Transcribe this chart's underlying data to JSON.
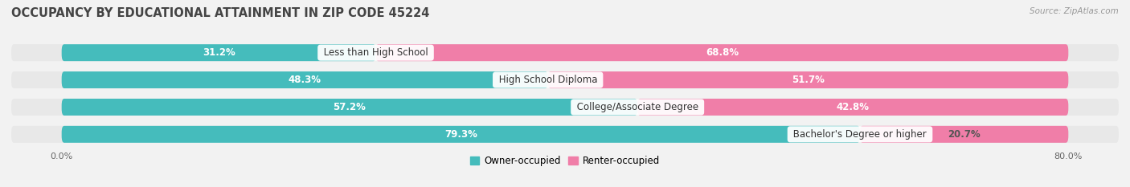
{
  "title": "OCCUPANCY BY EDUCATIONAL ATTAINMENT IN ZIP CODE 45224",
  "source": "Source: ZipAtlas.com",
  "categories": [
    "Less than High School",
    "High School Diploma",
    "College/Associate Degree",
    "Bachelor's Degree or higher"
  ],
  "owner_values": [
    31.2,
    48.3,
    57.2,
    79.3
  ],
  "renter_values": [
    68.8,
    51.7,
    42.8,
    20.7
  ],
  "owner_color": "#45BCBC",
  "renter_color": "#F07EA8",
  "bg_color": "#f2f2f2",
  "bar_bg_color": "#e0e0e0",
  "bar_row_bg": "#e8e8e8",
  "axis_label_left": "0.0%",
  "axis_label_right": "80.0%",
  "title_fontsize": 10.5,
  "bar_height": 0.62,
  "xlim_left": -5,
  "xlim_right": 105
}
